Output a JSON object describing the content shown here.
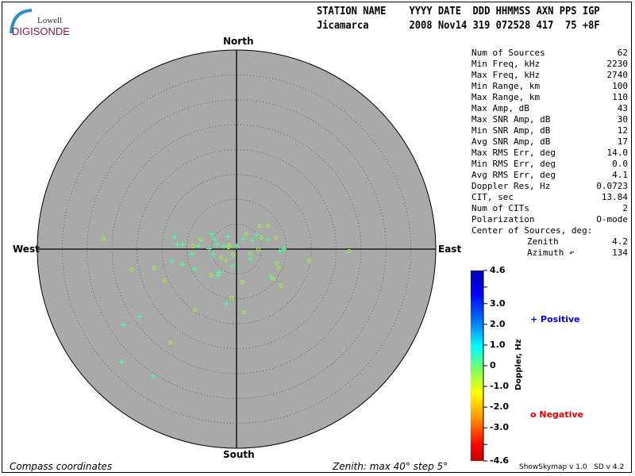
{
  "logo": {
    "line1": "Lowell",
    "line2": "DIGISONDE"
  },
  "header": {
    "labels": "STATION NAME    YYYY DATE  DDD HHMMSS AXN PPS IGP",
    "values": "Jicamarca       2008 Nov14 319 072528 417  75 +8F"
  },
  "stats": [
    {
      "label": "Num of Sources",
      "value": "62"
    },
    {
      "label": "Min Freq, kHz",
      "value": "2230"
    },
    {
      "label": "Max Freq, kHz",
      "value": "2740"
    },
    {
      "label": "Min Range, km",
      "value": "100"
    },
    {
      "label": "Max Range, km",
      "value": "110"
    },
    {
      "label": "Max Amp, dB",
      "value": "43"
    },
    {
      "label": "Max SNR Amp, dB",
      "value": "30"
    },
    {
      "label": "Min SNR Amp, dB",
      "value": "12"
    },
    {
      "label": "Avg SNR Amp, dB",
      "value": "17"
    },
    {
      "label": "Max RMS Err, deg",
      "value": "14.0"
    },
    {
      "label": "Min RMS Err, deg",
      "value": "0.0"
    },
    {
      "label": "Avg RMS Err, deg",
      "value": "4.1"
    },
    {
      "label": "Doppler Res, Hz",
      "value": "0.0723"
    },
    {
      "label": "CIT, sec",
      "value": "13.84"
    },
    {
      "label": "Num of CITs",
      "value": "2"
    },
    {
      "label": "Polarization",
      "value": "O-mode"
    }
  ],
  "center": {
    "title": "Center of Sources, deg:",
    "zenith_label": "Zenith",
    "zenith": "4.2",
    "azimuth_label": "Azimuth ↶",
    "azimuth": "134"
  },
  "directions": {
    "north": "North",
    "south": "South",
    "west": "West",
    "east": "East"
  },
  "footer": {
    "left": "Compass coordinates",
    "right": "Zenith: max 40°  step 5°",
    "version1": "ShowSkymap v 1.0",
    "version2": "SD v 4.2"
  },
  "colorbar": {
    "title": "Doppler, Hz",
    "ticks": [
      "4.6",
      "3.0",
      "2.0",
      "1.0",
      "0",
      "-1.0",
      "-2.0",
      "-3.0",
      "-4.6"
    ],
    "range": [
      -4.6,
      4.6
    ]
  },
  "legend": {
    "positive": "Positive",
    "negative": "Negative",
    "positive_color": "#0000dd",
    "negative_color": "#ee0000"
  },
  "chart_data": {
    "type": "scatter",
    "zenith_max_deg": 40,
    "zenith_step_deg": 5,
    "units": "east/north sky offset, deg of zenith",
    "series": [
      {
        "name": "Positive",
        "marker": "plus",
        "color": "#44ff99",
        "points": [
          [
            -12.5,
            2.5
          ],
          [
            -4.9,
            3.0
          ],
          [
            -1.7,
            2.5
          ],
          [
            -4.4,
            1.9
          ],
          [
            -11.9,
            0.9
          ],
          [
            -10.8,
            0.9
          ],
          [
            -7.6,
            0.7
          ],
          [
            -3.9,
            0.9
          ],
          [
            -2.5,
            0.6
          ],
          [
            0.0,
            0.6
          ],
          [
            -5.5,
            0.1
          ],
          [
            1.3,
            2.0
          ],
          [
            3.2,
            1.7
          ],
          [
            4.0,
            2.8
          ],
          [
            6.3,
            1.9
          ],
          [
            8.7,
            -0.4
          ],
          [
            9.5,
            0.0
          ],
          [
            -9.0,
            -1.0
          ],
          [
            -4.7,
            -1.0
          ],
          [
            -12.9,
            -2.4
          ],
          [
            -10.8,
            -3.1
          ],
          [
            -8.4,
            -4.0
          ],
          [
            -0.9,
            -3.4
          ],
          [
            -3.5,
            -4.7
          ],
          [
            -3.8,
            -5.3
          ],
          [
            2.8,
            -2.1
          ],
          [
            6.9,
            -5.6
          ],
          [
            -2.0,
            -11.0
          ],
          [
            -19.4,
            -13.6
          ],
          [
            -22.7,
            -15.2
          ],
          [
            -23.1,
            -22.7
          ],
          [
            -16.7,
            -25.5
          ]
        ]
      },
      {
        "name": "Negative",
        "marker": "circle",
        "color": "#99ee44",
        "points": [
          [
            -26.7,
            2.1
          ],
          [
            -7.1,
            1.9
          ],
          [
            -8.8,
            0.6
          ],
          [
            -1.5,
            0.8
          ],
          [
            -1.6,
            0.4
          ],
          [
            1.9,
            3.1
          ],
          [
            4.7,
            4.7
          ],
          [
            6.3,
            4.7
          ],
          [
            4.9,
            2.3
          ],
          [
            7.9,
            2.3
          ],
          [
            4.4,
            -0.1
          ],
          [
            2.8,
            -0.9
          ],
          [
            -0.7,
            -1.1
          ],
          [
            -3.1,
            -1.7
          ],
          [
            -2.1,
            -2.3
          ],
          [
            -21.1,
            -4.1
          ],
          [
            -16.5,
            -3.8
          ],
          [
            -14.4,
            -6.3
          ],
          [
            -5.1,
            -5.2
          ],
          [
            1.1,
            -6.6
          ],
          [
            8.1,
            -2.8
          ],
          [
            8.4,
            -3.8
          ],
          [
            7.5,
            -6.0
          ],
          [
            8.9,
            -7.3
          ],
          [
            14.6,
            -2.3
          ],
          [
            22.6,
            -0.4
          ],
          [
            -1.0,
            -9.8
          ],
          [
            -8.3,
            -12.2
          ],
          [
            1.5,
            -12.7
          ],
          [
            -13.3,
            -18.8
          ]
        ]
      }
    ]
  }
}
